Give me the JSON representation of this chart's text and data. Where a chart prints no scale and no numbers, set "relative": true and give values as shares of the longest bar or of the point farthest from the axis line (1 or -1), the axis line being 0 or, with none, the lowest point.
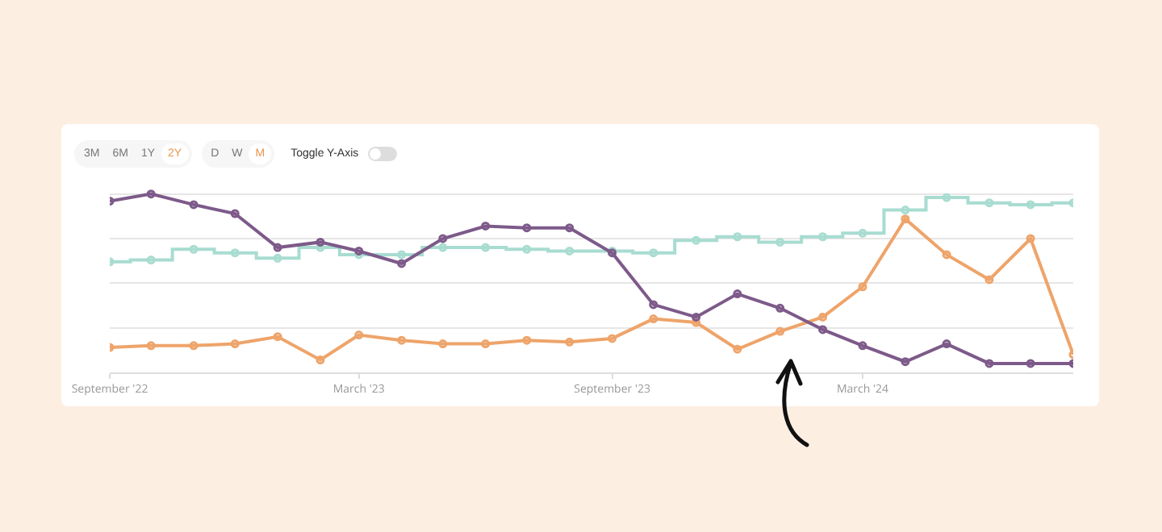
{
  "chart_data": {
    "type": "line",
    "relative": true,
    "grid": "y",
    "marker": "circle",
    "line_style": "solid",
    "annotations": [
      "3M",
      "6M",
      "1Y",
      "2Y",
      "D",
      "W",
      "M",
      "Toggle Y-Axis"
    ],
    "x": [
      "2022-09",
      "2022-10",
      "2022-11",
      "2022-12",
      "2023-01",
      "2023-02",
      "2023-03",
      "2023-04",
      "2023-05",
      "2023-06",
      "2023-07",
      "2023-08",
      "2023-09",
      "2023-10",
      "2023-11",
      "2023-12",
      "2024-01",
      "2024-02",
      "2024-03",
      "2024-04",
      "2024-05",
      "2024-06",
      "2024-07",
      "2024-08"
    ],
    "xlim": [
      "2022-09",
      "2024-08"
    ],
    "xticks": [
      {
        "value": "2022-09",
        "label": "September '22"
      },
      {
        "value": "2023-03",
        "label": "March '23"
      },
      {
        "value": "2023-09",
        "label": "September '23"
      },
      {
        "value": "2024-03",
        "label": "March '24"
      }
    ],
    "series": [
      {
        "color": "#7d5a8a",
        "values": [
          0.96,
          1,
          0.94,
          0.89,
          0.7,
          0.73,
          0.68,
          0.61,
          0.75,
          0.82,
          0.81,
          0.81,
          0.67,
          0.38,
          0.31,
          0.44,
          0.36,
          0.24,
          0.15,
          0.06,
          0.16,
          0.05,
          0.05,
          0.05
        ]
      },
      {
        "color": "#eea46a",
        "values": [
          0.14,
          0.15,
          0.15,
          0.16,
          0.2,
          0.07,
          0.21,
          0.18,
          0.16,
          0.16,
          0.18,
          0.17,
          0.19,
          0.3,
          0.28,
          0.13,
          0.23,
          0.31,
          0.48,
          0.86,
          0.66,
          0.52,
          0.75,
          0.1
        ]
      },
      {
        "type": "step",
        "color": "#a8dcd1",
        "values": [
          0.62,
          0.63,
          0.69,
          0.67,
          0.64,
          0.7,
          0.66,
          0.66,
          0.7,
          0.7,
          0.69,
          0.68,
          0.68,
          0.67,
          0.74,
          0.76,
          0.73,
          0.76,
          0.78,
          0.91,
          0.98,
          0.95,
          0.94,
          0.95
        ]
      }
    ]
  }
}
